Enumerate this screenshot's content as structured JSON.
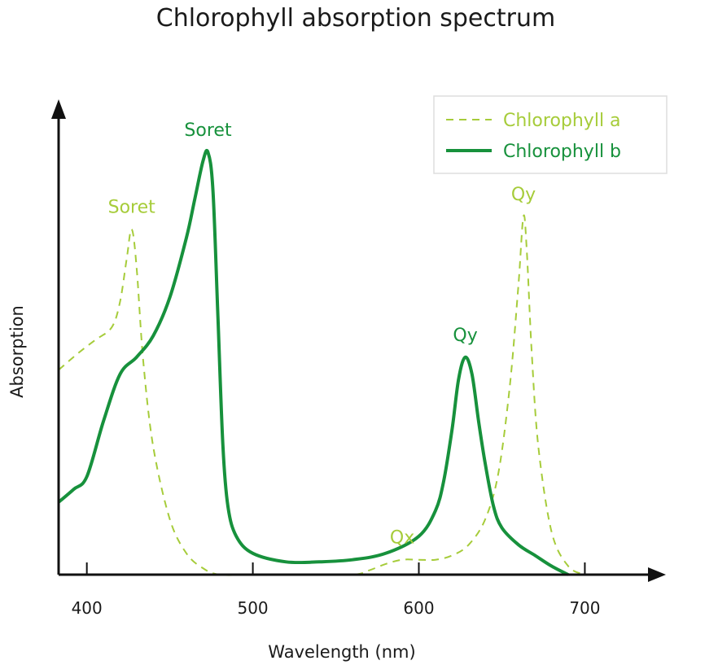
{
  "chart_data": {
    "type": "line",
    "title": "Chlorophyll absorption spectrum",
    "xlabel": "Wavelength (nm)",
    "ylabel": "Absorption",
    "xlim": [
      383,
      740
    ],
    "ylim": [
      0,
      1
    ],
    "x_ticks": [
      "400",
      "500",
      "600",
      "700"
    ],
    "legend_position": "top-right",
    "grid": false,
    "colors": {
      "chlorophyll_a": "#a6cc3a",
      "chlorophyll_b": "#17913c",
      "axis": "#111111"
    },
    "series": [
      {
        "name": "Chlorophyll a",
        "style": "dashed",
        "x": [
          383,
          395,
          405,
          415,
          420,
          424,
          427,
          430,
          434,
          440,
          450,
          460,
          470,
          480,
          500,
          530,
          560,
          570,
          580,
          590,
          600,
          610,
          620,
          630,
          640,
          648,
          655,
          660,
          663,
          665,
          668,
          672,
          680,
          690,
          700
        ],
        "y": [
          0.48,
          0.52,
          0.55,
          0.58,
          0.64,
          0.74,
          0.81,
          0.72,
          0.5,
          0.3,
          0.13,
          0.05,
          0.015,
          0.0,
          0.0,
          0.0,
          0.0,
          0.01,
          0.025,
          0.035,
          0.035,
          0.035,
          0.045,
          0.07,
          0.13,
          0.24,
          0.45,
          0.68,
          0.84,
          0.76,
          0.52,
          0.3,
          0.1,
          0.02,
          0.0
        ]
      },
      {
        "name": "Chlorophyll b",
        "style": "solid",
        "x": [
          383,
          392,
          400,
          410,
          420,
          430,
          440,
          450,
          460,
          465,
          470,
          473,
          476,
          479,
          482,
          485,
          490,
          500,
          520,
          540,
          560,
          580,
          600,
          610,
          615,
          620,
          624,
          628,
          632,
          636,
          640,
          645,
          650,
          660,
          670,
          680,
          690
        ],
        "y": [
          0.17,
          0.2,
          0.23,
          0.36,
          0.47,
          0.51,
          0.56,
          0.65,
          0.79,
          0.88,
          0.97,
          0.99,
          0.9,
          0.6,
          0.3,
          0.16,
          0.09,
          0.05,
          0.03,
          0.03,
          0.035,
          0.05,
          0.09,
          0.15,
          0.22,
          0.34,
          0.46,
          0.51,
          0.47,
          0.36,
          0.26,
          0.16,
          0.11,
          0.07,
          0.045,
          0.02,
          0.0
        ]
      }
    ],
    "annotations": [
      {
        "text": "Soret",
        "series": "Chlorophyll a",
        "x": 427
      },
      {
        "text": "Soret",
        "series": "Chlorophyll b",
        "x": 473
      },
      {
        "text": "Qx",
        "series": "Chlorophyll a",
        "x": 590
      },
      {
        "text": "Qy",
        "series": "Chlorophyll b",
        "x": 628
      },
      {
        "text": "Qy",
        "series": "Chlorophyll a",
        "x": 663
      }
    ]
  }
}
